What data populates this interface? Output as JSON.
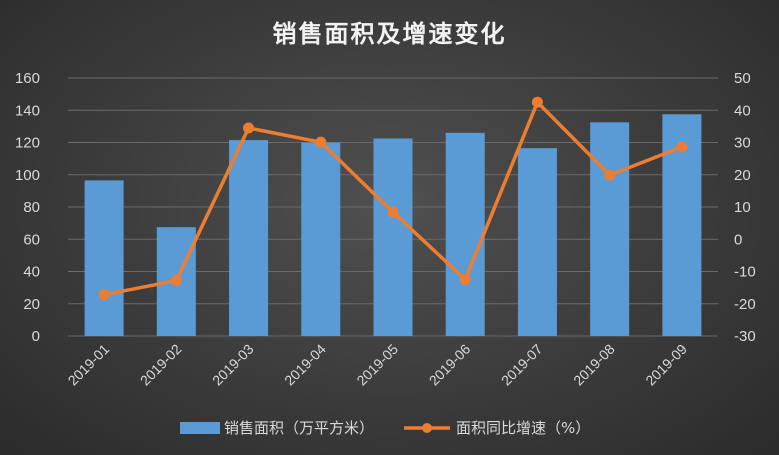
{
  "chart_data": {
    "type": "bar",
    "title": "销售面积及增速变化",
    "categories": [
      "2019-01",
      "2019-02",
      "2019-03",
      "2019-04",
      "2019-05",
      "2019-06",
      "2019-07",
      "2019-08",
      "2019-09"
    ],
    "series": [
      {
        "name": "销售面积（万平方米）",
        "type": "bar",
        "axis": "left",
        "color": "#5b9bd5",
        "values": [
          96.5,
          67.5,
          121.5,
          120,
          122.5,
          126,
          116.5,
          132.5,
          137.5
        ]
      },
      {
        "name": "面积同比增速（%）",
        "type": "line",
        "axis": "right",
        "color": "#ed7d31",
        "values": [
          -17.2,
          -12.8,
          34.5,
          30.1,
          8.4,
          -12.5,
          42.5,
          19.9,
          28.6
        ]
      }
    ],
    "y_left": {
      "min": 0,
      "max": 160,
      "ticks": [
        0,
        20,
        40,
        60,
        80,
        100,
        120,
        140,
        160
      ]
    },
    "y_right": {
      "min": -30,
      "max": 50,
      "ticks": [
        -30,
        -20,
        -10,
        0,
        10,
        20,
        30,
        40,
        50
      ]
    },
    "grid": true,
    "legend_position": "bottom"
  }
}
